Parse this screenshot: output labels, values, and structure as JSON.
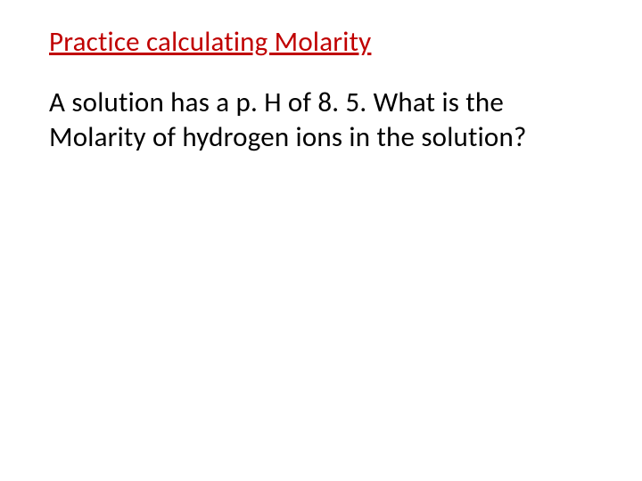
{
  "slide": {
    "heading": "Practice calculating Molarity",
    "body": "A solution has a p. H of 8. 5.  What is the Molarity of hydrogen ions in the solution?",
    "heading_color": "#c00000",
    "body_color": "#000000",
    "background_color": "#ffffff",
    "font_family": "Calibri",
    "heading_fontsize": 31,
    "body_fontsize": 31,
    "heading_underline": true
  }
}
